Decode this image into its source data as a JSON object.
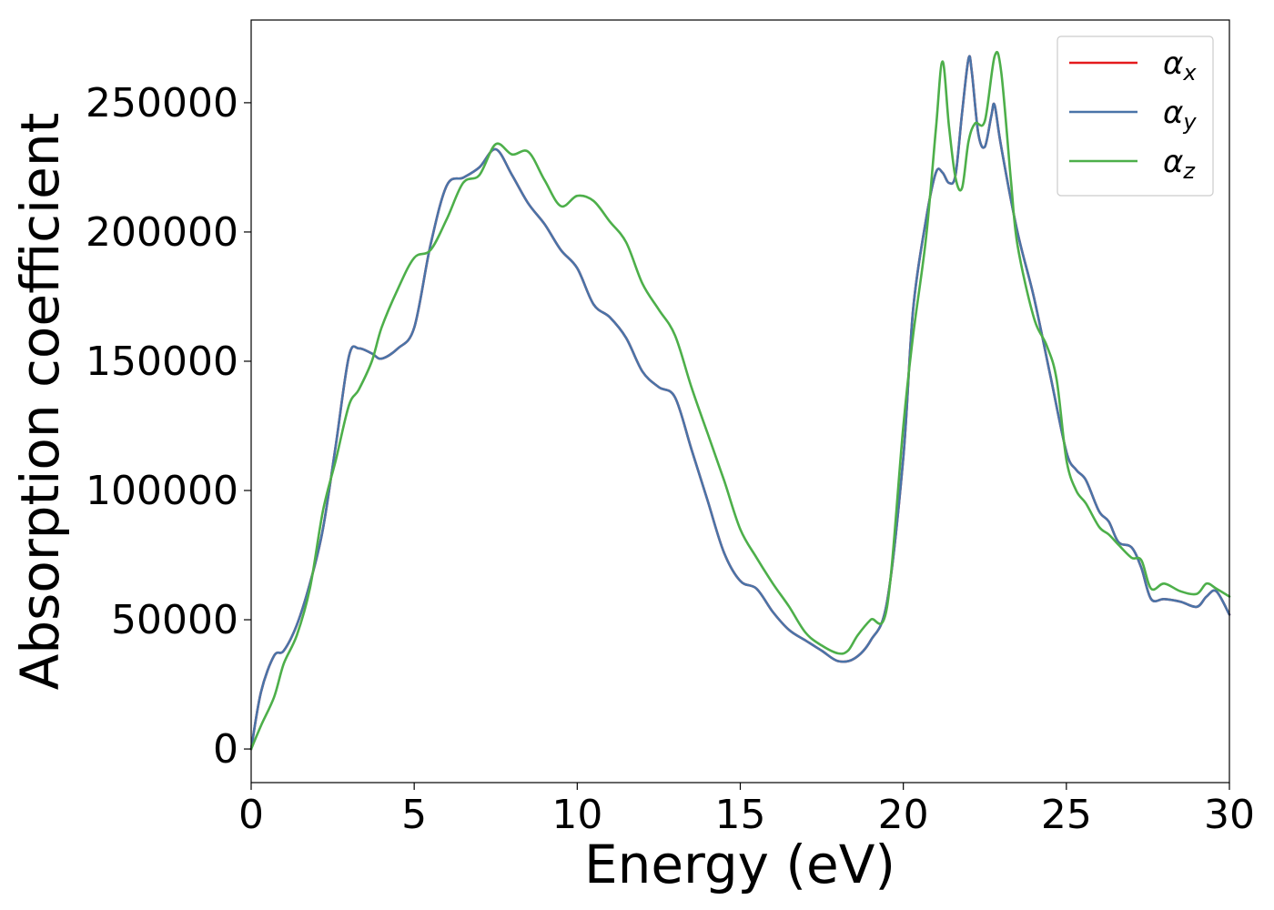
{
  "chart_data": {
    "type": "line",
    "title": "",
    "xlabel": "Energy (eV)",
    "ylabel": "Absorption coefficient",
    "xlim": [
      0,
      30
    ],
    "ylim": [
      -13000,
      282000
    ],
    "xticks": [
      "0",
      "5",
      "10",
      "15",
      "20",
      "25",
      "30"
    ],
    "yticks": [
      "0",
      "50000",
      "100000",
      "150000",
      "200000",
      "250000"
    ],
    "grid": false,
    "legend_position": "top-right",
    "series": [
      {
        "name": "αx",
        "base": "α",
        "sub": "x",
        "color": "#e41a1c",
        "x": [
          0,
          0.3,
          0.7,
          1.0,
          1.4,
          1.8,
          2.2,
          2.6,
          3.0,
          3.3,
          3.7,
          4.0,
          4.5,
          5.0,
          5.5,
          6.0,
          6.5,
          7.0,
          7.5,
          8.0,
          8.5,
          9.0,
          9.5,
          10.0,
          10.5,
          11.0,
          11.5,
          12.0,
          12.5,
          13.0,
          13.5,
          14.0,
          14.5,
          15.0,
          15.5,
          16.0,
          16.5,
          17.0,
          17.5,
          18.0,
          18.5,
          19.0,
          19.5,
          20.0,
          20.3,
          20.7,
          21.0,
          21.2,
          21.4,
          21.6,
          21.8,
          22.0,
          22.1,
          22.3,
          22.5,
          22.7,
          22.8,
          23.0,
          23.5,
          24.0,
          24.5,
          25.0,
          25.3,
          25.6,
          26.0,
          26.3,
          26.6,
          27.0,
          27.3,
          27.6,
          28.0,
          28.5,
          29.0,
          29.3,
          29.6,
          30.0
        ],
        "y": [
          0,
          22000,
          36000,
          38000,
          48000,
          64000,
          85000,
          118000,
          152000,
          155000,
          153000,
          151000,
          155000,
          163000,
          195000,
          218000,
          221000,
          225000,
          232000,
          222000,
          211000,
          203000,
          193000,
          186000,
          172000,
          167000,
          159000,
          146000,
          140000,
          136000,
          116000,
          96000,
          76000,
          65000,
          62000,
          53000,
          46000,
          42000,
          38000,
          34000,
          35000,
          42000,
          57000,
          113000,
          170000,
          205000,
          223000,
          223000,
          219000,
          222000,
          246000,
          267000,
          262000,
          238000,
          233000,
          245000,
          249000,
          233000,
          200000,
          175000,
          145000,
          115000,
          108000,
          104000,
          92000,
          88000,
          80000,
          78000,
          70000,
          58000,
          58000,
          57000,
          55000,
          59000,
          61000,
          52000
        ]
      },
      {
        "name": "αy",
        "base": "α",
        "sub": "y",
        "color": "#4a74a8",
        "x": [
          0,
          0.3,
          0.7,
          1.0,
          1.4,
          1.8,
          2.2,
          2.6,
          3.0,
          3.3,
          3.7,
          4.0,
          4.5,
          5.0,
          5.5,
          6.0,
          6.5,
          7.0,
          7.5,
          8.0,
          8.5,
          9.0,
          9.5,
          10.0,
          10.5,
          11.0,
          11.5,
          12.0,
          12.5,
          13.0,
          13.5,
          14.0,
          14.5,
          15.0,
          15.5,
          16.0,
          16.5,
          17.0,
          17.5,
          18.0,
          18.5,
          19.0,
          19.5,
          20.0,
          20.3,
          20.7,
          21.0,
          21.2,
          21.4,
          21.6,
          21.8,
          22.0,
          22.1,
          22.3,
          22.5,
          22.7,
          22.8,
          23.0,
          23.5,
          24.0,
          24.5,
          25.0,
          25.3,
          25.6,
          26.0,
          26.3,
          26.6,
          27.0,
          27.3,
          27.6,
          28.0,
          28.5,
          29.0,
          29.3,
          29.6,
          30.0
        ],
        "y": [
          0,
          22000,
          36000,
          38000,
          48000,
          64000,
          85000,
          118000,
          152000,
          155000,
          153000,
          151000,
          155000,
          163000,
          195000,
          218000,
          221000,
          225000,
          232000,
          222000,
          211000,
          203000,
          193000,
          186000,
          172000,
          167000,
          159000,
          146000,
          140000,
          136000,
          116000,
          96000,
          76000,
          65000,
          62000,
          53000,
          46000,
          42000,
          38000,
          34000,
          35000,
          42000,
          57000,
          113000,
          170000,
          205000,
          223000,
          223000,
          219000,
          222000,
          246000,
          267000,
          262000,
          238000,
          233000,
          245000,
          249000,
          233000,
          200000,
          175000,
          145000,
          115000,
          108000,
          104000,
          92000,
          88000,
          80000,
          78000,
          70000,
          58000,
          58000,
          57000,
          55000,
          59000,
          61000,
          52000
        ]
      },
      {
        "name": "αz",
        "base": "α",
        "sub": "z",
        "color": "#4daf4a",
        "x": [
          0,
          0.3,
          0.7,
          1.0,
          1.4,
          1.8,
          2.2,
          2.6,
          3.0,
          3.3,
          3.7,
          4.0,
          4.5,
          5.0,
          5.5,
          6.0,
          6.5,
          7.0,
          7.5,
          8.0,
          8.5,
          9.0,
          9.5,
          10.0,
          10.5,
          11.0,
          11.5,
          12.0,
          12.5,
          13.0,
          13.5,
          14.0,
          14.5,
          15.0,
          15.5,
          16.0,
          16.5,
          17.0,
          17.5,
          18.0,
          18.3,
          18.6,
          19.0,
          19.5,
          20.0,
          20.3,
          20.7,
          21.0,
          21.2,
          21.4,
          21.6,
          21.8,
          22.0,
          22.2,
          22.5,
          22.8,
          23.0,
          23.3,
          23.5,
          24.0,
          24.4,
          24.7,
          25.0,
          25.3,
          25.6,
          26.0,
          26.3,
          26.6,
          27.0,
          27.3,
          27.6,
          28.0,
          28.5,
          29.0,
          29.3,
          29.6,
          30.0
        ],
        "y": [
          0,
          9000,
          20000,
          33000,
          44000,
          62000,
          92000,
          112000,
          133000,
          139000,
          150000,
          163000,
          178000,
          190000,
          193000,
          205000,
          219000,
          222000,
          234000,
          230000,
          231000,
          220000,
          210000,
          214000,
          212000,
          204000,
          196000,
          180000,
          170000,
          160000,
          140000,
          122000,
          104000,
          85000,
          74000,
          64000,
          55000,
          45000,
          40000,
          37000,
          38000,
          44000,
          50000,
          55000,
          125000,
          160000,
          198000,
          240000,
          266000,
          241000,
          221000,
          217000,
          235000,
          242000,
          243000,
          268000,
          262000,
          220000,
          195000,
          167000,
          156000,
          143000,
          112000,
          100000,
          95000,
          86000,
          83000,
          79000,
          74000,
          73000,
          62000,
          64000,
          61000,
          60000,
          64000,
          62000,
          59000
        ]
      }
    ]
  }
}
